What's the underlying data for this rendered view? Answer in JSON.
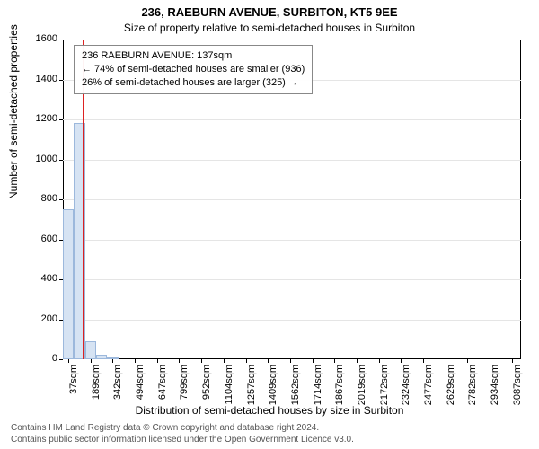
{
  "title_main": "236, RAEBURN AVENUE, SURBITON, KT5 9EE",
  "title_sub": "Size of property relative to semi-detached houses in Surbiton",
  "ylabel": "Number of semi-detached properties",
  "xlabel": "Distribution of semi-detached houses by size in Surbiton",
  "legend": {
    "line1": "236 RAEBURN AVENUE: 137sqm",
    "line2": "← 74% of semi-detached houses are smaller (936)",
    "line3": "26% of semi-detached houses are larger (325) →"
  },
  "footer_line1": "Contains HM Land Registry data © Crown copyright and database right 2024.",
  "footer_line2": "Contains public sector information licensed under the Open Government Licence v3.0.",
  "chart": {
    "type": "histogram",
    "background_color": "#ffffff",
    "grid_color": "#e5e5e5",
    "border_color": "#000000",
    "bar_fill": "#d6e3f3",
    "bar_edge": "#9cb8dc",
    "ref_line_color": "#dd2222",
    "ylim": [
      0,
      1600
    ],
    "yticks": [
      0,
      200,
      400,
      600,
      800,
      1000,
      1200,
      1400,
      1600
    ],
    "xlim_sqm": [
      0,
      3150
    ],
    "ref_line_sqm": 137,
    "bins": [
      {
        "start": 0,
        "width": 76,
        "count": 750
      },
      {
        "start": 76,
        "width": 76,
        "count": 1180
      },
      {
        "start": 152,
        "width": 76,
        "count": 90
      },
      {
        "start": 228,
        "width": 76,
        "count": 22
      },
      {
        "start": 304,
        "width": 76,
        "count": 6
      }
    ],
    "xtick_labels": [
      "37sqm",
      "189sqm",
      "342sqm",
      "494sqm",
      "647sqm",
      "799sqm",
      "952sqm",
      "1104sqm",
      "1257sqm",
      "1409sqm",
      "1562sqm",
      "1714sqm",
      "1867sqm",
      "2019sqm",
      "2172sqm",
      "2324sqm",
      "2477sqm",
      "2629sqm",
      "2782sqm",
      "2934sqm",
      "3087sqm"
    ],
    "xtick_sqm": [
      37,
      189,
      342,
      494,
      647,
      799,
      952,
      1104,
      1257,
      1409,
      1562,
      1714,
      1867,
      2019,
      2172,
      2324,
      2477,
      2629,
      2782,
      2934,
      3087
    ],
    "title_fontsize": 13,
    "label_fontsize": 12,
    "tick_fontsize": 11
  }
}
